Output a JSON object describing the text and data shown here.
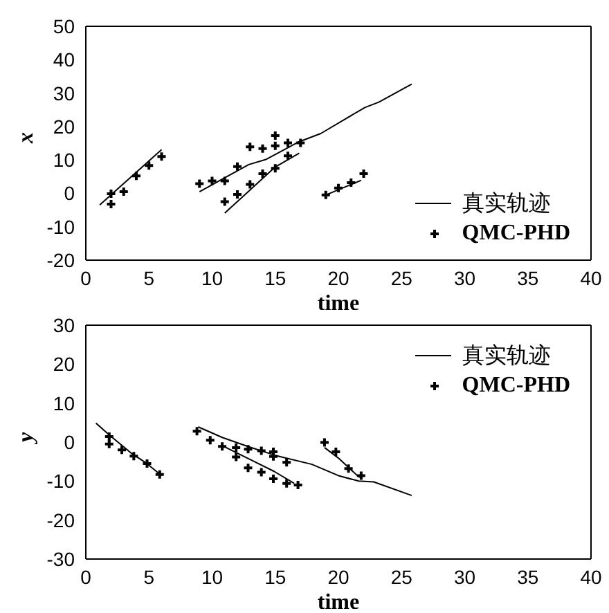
{
  "chart_data": [
    {
      "type": "line",
      "xlabel": "time",
      "ylabel": "x",
      "xlim": [
        0,
        40
      ],
      "xticks": [
        0,
        5,
        10,
        15,
        20,
        25,
        30,
        35,
        40
      ],
      "ylim": [
        -20,
        50
      ],
      "yticks": [
        -20,
        -10,
        0,
        10,
        20,
        30,
        40,
        50
      ],
      "grid": false,
      "legend": "bottom right",
      "series": [
        {
          "name": "真实轨迹",
          "color": "#000000",
          "marker": "none",
          "line_style": "solid",
          "x": [
            1.1,
            6.0
          ],
          "values": [
            -3.5,
            13.1
          ]
        },
        {
          "color": "#000000",
          "marker": "none",
          "line_style": "solid",
          "x": [
            9.0,
            12.9,
            14.3,
            16.8,
            18.6,
            20.7,
            22.1,
            23.2,
            25.8
          ],
          "values": [
            0.5,
            8.6,
            10.2,
            15.3,
            17.9,
            22.6,
            25.7,
            27.3,
            32.7
          ]
        },
        {
          "color": "#000000",
          "marker": "none",
          "line_style": "solid",
          "x": [
            11.0,
            15.0,
            16.9
          ],
          "values": [
            -5.9,
            7.9,
            12.0
          ]
        },
        {
          "color": "#000000",
          "marker": "none",
          "line_style": "solid",
          "x": [
            19.0,
            21.8
          ],
          "values": [
            -0.5,
            3.9
          ]
        },
        {
          "name": "QMC-PHD",
          "type": "scatter",
          "color": "#000000",
          "marker": "cross",
          "x": [
            2,
            2,
            3,
            4,
            5,
            6,
            9,
            10,
            11,
            11,
            12,
            12,
            13,
            13,
            14,
            14,
            15,
            15,
            15,
            16,
            16,
            17,
            19,
            20,
            21,
            22
          ],
          "values": [
            -0.1,
            -3.2,
            0.5,
            5.2,
            8.3,
            11.0,
            2.9,
            3.7,
            3.7,
            -2.5,
            8.0,
            -0.3,
            13.9,
            2.7,
            13.4,
            5.9,
            17.3,
            14.2,
            7.5,
            15.1,
            11.2,
            15.1,
            -0.5,
            1.6,
            3.2,
            5.9
          ]
        }
      ]
    },
    {
      "type": "line",
      "xlabel": "time",
      "ylabel": "y",
      "xlim": [
        0,
        40
      ],
      "xticks": [
        0,
        5,
        10,
        15,
        20,
        25,
        30,
        35,
        40
      ],
      "ylim": [
        -30,
        30
      ],
      "yticks": [
        -30,
        -20,
        -10,
        0,
        10,
        20,
        30
      ],
      "grid": false,
      "legend": "top right",
      "series": [
        {
          "name": "真实轨迹",
          "color": "#000000",
          "marker": "none",
          "line_style": "solid",
          "x": [
            0.8,
            1.8,
            3.7,
            4.8,
            6.0
          ],
          "values": [
            4.9,
            2.0,
            -3.1,
            -5.4,
            -8.6
          ]
        },
        {
          "color": "#000000",
          "marker": "none",
          "line_style": "solid",
          "x": [
            8.9,
            10.8,
            12.9,
            15.0,
            17.9,
            20.0,
            21.6,
            22.8,
            25.8
          ],
          "values": [
            3.9,
            1.2,
            -1.2,
            -3.4,
            -5.7,
            -8.6,
            -10.0,
            -10.2,
            -13.7
          ]
        },
        {
          "color": "#000000",
          "marker": "none",
          "line_style": "solid",
          "x": [
            10.8,
            12.9,
            14.9,
            16.5
          ],
          "values": [
            -0.9,
            -4.3,
            -7.5,
            -10.6
          ]
        },
        {
          "color": "#000000",
          "marker": "none",
          "line_style": "solid",
          "x": [
            18.9,
            20.0,
            21.6,
            21.9
          ],
          "values": [
            -1.4,
            -4.1,
            -8.9,
            -9.1
          ]
        },
        {
          "name": "QMC-PHD",
          "type": "scatter",
          "color": "#000000",
          "marker": "cross",
          "x": [
            1.85,
            1.85,
            2.85,
            3.8,
            4.85,
            5.85,
            8.8,
            9.85,
            10.8,
            11.9,
            11.9,
            12.85,
            12.85,
            13.9,
            13.9,
            14.85,
            14.85,
            14.85,
            15.9,
            15.9,
            16.8,
            18.9,
            19.8,
            20.8,
            21.8
          ],
          "values": [
            1.4,
            -0.5,
            -2.0,
            -3.6,
            -5.5,
            -8.3,
            2.8,
            0.5,
            -1.1,
            -1.4,
            -3.8,
            -1.8,
            -6.6,
            -2.2,
            -7.7,
            -2.5,
            -3.7,
            -9.4,
            -5.2,
            -10.6,
            -11.0,
            -0.1,
            -2.5,
            -6.8,
            -8.6
          ]
        }
      ]
    }
  ]
}
